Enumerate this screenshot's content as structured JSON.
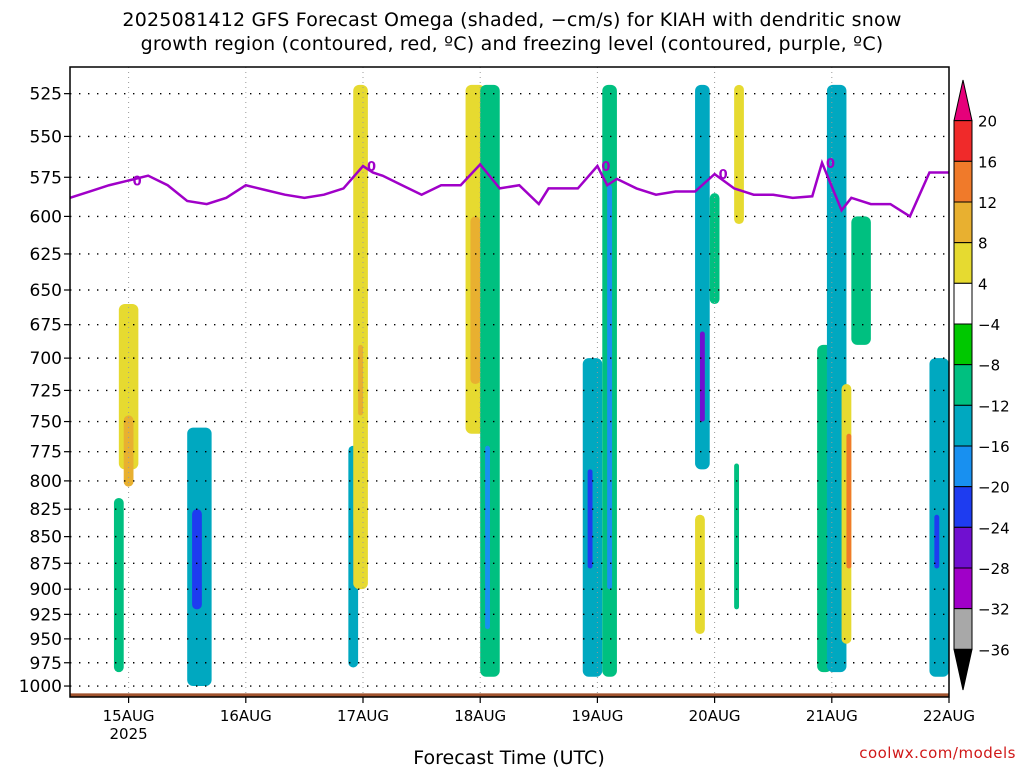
{
  "title": {
    "line1": "2025081412 GFS Forecast Omega (shaded, −cm/s) for KIAH with dendritic snow",
    "line2": "growth region (contoured, red, ºC) and freezing level (contoured, purple, ºC)"
  },
  "watermark": "coolwx.com/models",
  "chart_data": {
    "type": "heatmap",
    "title": "2025081412 GFS Forecast Omega (shaded, −cm/s) for KIAH with dendritic snow growth region (contoured, red, ºC) and freezing level (contoured, purple, ºC)",
    "xlabel": "Forecast Time (UTC)",
    "ylabel": "",
    "x_range": [
      "2025-08-14 12Z",
      "2025-08-22 00Z"
    ],
    "x_ticks": [
      {
        "label": "15AUG",
        "sub": "2025",
        "t": 12
      },
      {
        "label": "16AUG",
        "sub": "",
        "t": 36
      },
      {
        "label": "17AUG",
        "sub": "",
        "t": 60
      },
      {
        "label": "18AUG",
        "sub": "",
        "t": 84
      },
      {
        "label": "19AUG",
        "sub": "",
        "t": 108
      },
      {
        "label": "20AUG",
        "sub": "",
        "t": 132
      },
      {
        "label": "21AUG",
        "sub": "",
        "t": 156
      },
      {
        "label": "22AUG",
        "sub": "",
        "t": 180
      }
    ],
    "y_axis_reversed": true,
    "y_range": [
      1012,
      510
    ],
    "y_ticks": [
      525,
      550,
      575,
      600,
      625,
      650,
      675,
      700,
      725,
      750,
      775,
      800,
      825,
      850,
      875,
      900,
      925,
      950,
      975,
      1000
    ],
    "grid": true,
    "colorbar": {
      "labels": [
        "20",
        "16",
        "12",
        "8",
        "4",
        "−4",
        "−8",
        "−12",
        "−16",
        "−20",
        "−24",
        "−28",
        "−32",
        "−36"
      ],
      "colors": [
        "#e6007a",
        "#f02a2a",
        "#f07a2a",
        "#e8b030",
        "#e6da30",
        "#ffffff",
        "#00c800",
        "#00c080",
        "#00a8c0",
        "#1890f0",
        "#1e3cf0",
        "#7010d0",
        "#a000c8",
        "#a8a8a8",
        "#000000"
      ]
    },
    "freezing_level": {
      "label": "0",
      "color": "#a000c8",
      "points": [
        [
          0,
          588
        ],
        [
          4,
          584
        ],
        [
          8,
          580
        ],
        [
          12,
          577
        ],
        [
          16,
          574
        ],
        [
          20,
          580
        ],
        [
          24,
          590
        ],
        [
          28,
          592
        ],
        [
          32,
          588
        ],
        [
          36,
          580
        ],
        [
          40,
          583
        ],
        [
          44,
          586
        ],
        [
          48,
          588
        ],
        [
          52,
          586
        ],
        [
          56,
          582
        ],
        [
          60,
          568
        ],
        [
          62,
          572
        ],
        [
          64,
          574
        ],
        [
          68,
          580
        ],
        [
          72,
          586
        ],
        [
          76,
          580
        ],
        [
          80,
          580
        ],
        [
          84,
          567
        ],
        [
          88,
          582
        ],
        [
          92,
          580
        ],
        [
          96,
          592
        ],
        [
          98,
          582
        ],
        [
          104,
          582
        ],
        [
          108,
          568
        ],
        [
          110,
          580
        ],
        [
          112,
          576
        ],
        [
          116,
          582
        ],
        [
          120,
          586
        ],
        [
          124,
          584
        ],
        [
          128,
          584
        ],
        [
          132,
          573
        ],
        [
          136,
          582
        ],
        [
          140,
          586
        ],
        [
          144,
          586
        ],
        [
          148,
          588
        ],
        [
          152,
          587
        ],
        [
          154,
          566
        ],
        [
          158,
          596
        ],
        [
          160,
          588
        ],
        [
          164,
          592
        ],
        [
          168,
          592
        ],
        [
          172,
          600
        ],
        [
          176,
          572
        ],
        [
          180,
          572
        ]
      ]
    },
    "dendritic_region_contours": [],
    "omega_regions": [
      {
        "t": [
          10,
          14
        ],
        "p": [
          660,
          790
        ],
        "v": 6
      },
      {
        "t": [
          11,
          13
        ],
        "p": [
          745,
          805
        ],
        "v": 10
      },
      {
        "t": [
          9,
          11
        ],
        "p": [
          815,
          985
        ],
        "v": -10
      },
      {
        "t": [
          24,
          29
        ],
        "p": [
          755,
          1000
        ],
        "v": -12
      },
      {
        "t": [
          25,
          27
        ],
        "p": [
          825,
          920
        ],
        "v": -22
      },
      {
        "t": [
          57,
          59
        ],
        "p": [
          770,
          980
        ],
        "v": -12
      },
      {
        "t": [
          58,
          59
        ],
        "p": [
          835,
          895
        ],
        "v": -22
      },
      {
        "t": [
          58,
          61
        ],
        "p": [
          520,
          900
        ],
        "v": 6
      },
      {
        "t": [
          59,
          60
        ],
        "p": [
          690,
          745
        ],
        "v": 10
      },
      {
        "t": [
          81,
          85
        ],
        "p": [
          520,
          760
        ],
        "v": 6
      },
      {
        "t": [
          82,
          84
        ],
        "p": [
          600,
          720
        ],
        "v": 10
      },
      {
        "t": [
          84,
          88
        ],
        "p": [
          520,
          990
        ],
        "v": -10
      },
      {
        "t": [
          85,
          86
        ],
        "p": [
          770,
          940
        ],
        "v": -16
      },
      {
        "t": [
          105,
          109
        ],
        "p": [
          700,
          990
        ],
        "v": -12
      },
      {
        "t": [
          106,
          107
        ],
        "p": [
          790,
          880
        ],
        "v": -22
      },
      {
        "t": [
          109,
          112
        ],
        "p": [
          520,
          990
        ],
        "v": -10
      },
      {
        "t": [
          110,
          111
        ],
        "p": [
          580,
          900
        ],
        "v": -16
      },
      {
        "t": [
          128,
          131
        ],
        "p": [
          520,
          790
        ],
        "v": -12
      },
      {
        "t": [
          129,
          130
        ],
        "p": [
          680,
          750
        ],
        "v": -24
      },
      {
        "t": [
          128,
          130
        ],
        "p": [
          830,
          945
        ],
        "v": 6
      },
      {
        "t": [
          131,
          133
        ],
        "p": [
          585,
          660
        ],
        "v": -8
      },
      {
        "t": [
          136,
          138
        ],
        "p": [
          520,
          605
        ],
        "v": 6
      },
      {
        "t": [
          136,
          137
        ],
        "p": [
          785,
          920
        ],
        "v": -8
      },
      {
        "t": [
          153,
          156
        ],
        "p": [
          690,
          985
        ],
        "v": -8
      },
      {
        "t": [
          155,
          159
        ],
        "p": [
          520,
          985
        ],
        "v": -12
      },
      {
        "t": [
          158,
          160
        ],
        "p": [
          720,
          955
        ],
        "v": 6
      },
      {
        "t": [
          159,
          160
        ],
        "p": [
          760,
          880
        ],
        "v": 12
      },
      {
        "t": [
          160,
          164
        ],
        "p": [
          600,
          690
        ],
        "v": -8
      },
      {
        "t": [
          176,
          180
        ],
        "p": [
          700,
          990
        ],
        "v": -12
      },
      {
        "t": [
          177,
          178
        ],
        "p": [
          830,
          880
        ],
        "v": -22
      }
    ],
    "terrain": {
      "color": "#a0522d",
      "surface_p": 1008
    }
  }
}
